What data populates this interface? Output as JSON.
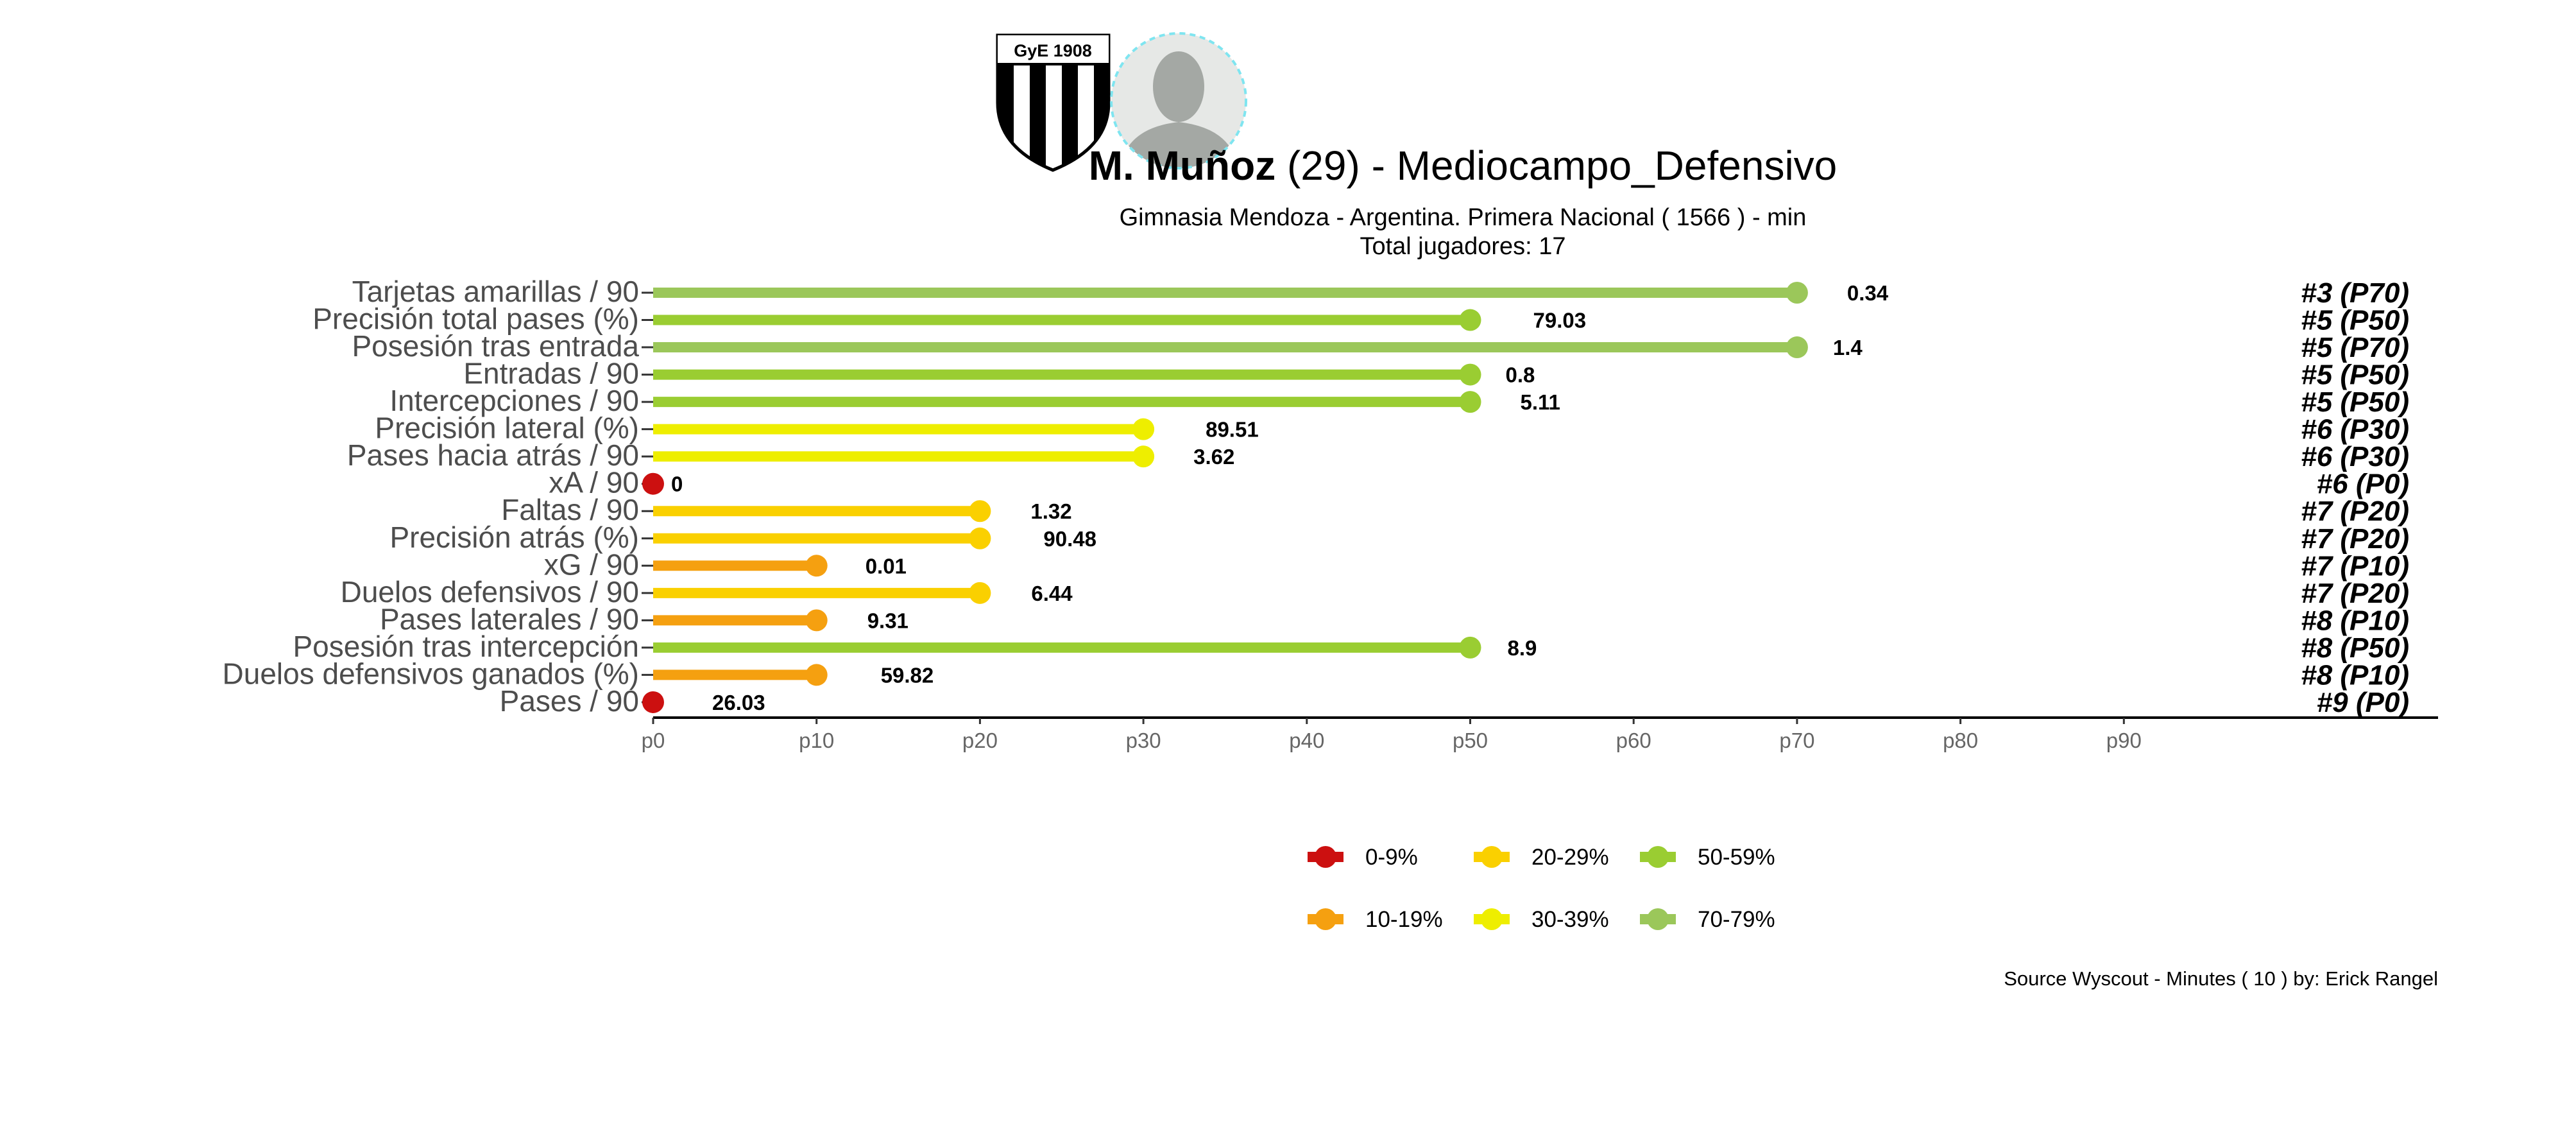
{
  "header": {
    "club_crest_text": "GyE 1908",
    "player_name_bold": "M. Muñoz",
    "player_suffix": " (29) -  Mediocampo_Defensivo",
    "subtitle": "Gimnasia Mendoza  -  Argentina. Primera Nacional  ( 1566 ) - min",
    "total_players": "Total jugadores:  17"
  },
  "footer": {
    "source": "Source Wyscout - Minutes ( 10 ) by: Erick Rangel"
  },
  "colors": {
    "c0": "#CC1010",
    "c10": "#F5A010",
    "c20": "#FAD000",
    "c30": "#EEEE00",
    "c50": "#9ACD32",
    "c70": "#9BC75A",
    "axis": "#000000",
    "label": "#4D4D4D",
    "tick": "#666666"
  },
  "chart_data": {
    "type": "bar",
    "orientation": "horizontal-lollipop",
    "xlim": [
      0,
      100
    ],
    "x_ticks": [
      "p0",
      "p10",
      "p20",
      "p30",
      "p40",
      "p50",
      "p60",
      "p70",
      "p80",
      "p90"
    ],
    "x_tick_values": [
      0,
      10,
      20,
      30,
      40,
      50,
      60,
      70,
      80,
      90
    ],
    "grid": false,
    "legend_position": "bottom",
    "legend": [
      {
        "label": "0-9%",
        "color_key": "c0"
      },
      {
        "label": "20-29%",
        "color_key": "c20"
      },
      {
        "label": "50-59%",
        "color_key": "c50"
      },
      {
        "label": "10-19%",
        "color_key": "c10"
      },
      {
        "label": "30-39%",
        "color_key": "c30"
      },
      {
        "label": "70-79%",
        "color_key": "c70"
      }
    ],
    "rows": [
      {
        "metric": "Tarjetas amarillas / 90",
        "percentile": 70,
        "value_label": "0.34",
        "rank_label": "#3 (P70)",
        "color_key": "c70"
      },
      {
        "metric": "Precisión total pases (%)",
        "percentile": 50,
        "value_label": "79.03",
        "rank_label": "#5 (P50)",
        "color_key": "c50"
      },
      {
        "metric": "Posesión tras entrada",
        "percentile": 70,
        "value_label": "1.4",
        "rank_label": "#5 (P70)",
        "color_key": "c70"
      },
      {
        "metric": "Entradas / 90",
        "percentile": 50,
        "value_label": "0.8",
        "rank_label": "#5 (P50)",
        "color_key": "c50"
      },
      {
        "metric": "Intercepciones / 90",
        "percentile": 50,
        "value_label": "5.11",
        "rank_label": "#5 (P50)",
        "color_key": "c50"
      },
      {
        "metric": "Precisión lateral (%)",
        "percentile": 30,
        "value_label": "89.51",
        "rank_label": "#6 (P30)",
        "color_key": "c30"
      },
      {
        "metric": "Pases hacia atrás / 90",
        "percentile": 30,
        "value_label": "3.62",
        "rank_label": "#6 (P30)",
        "color_key": "c30"
      },
      {
        "metric": "xA / 90",
        "percentile": 0,
        "value_label": "0",
        "rank_label": "#6 (P0)",
        "color_key": "c0"
      },
      {
        "metric": "Faltas / 90",
        "percentile": 20,
        "value_label": "1.32",
        "rank_label": "#7 (P20)",
        "color_key": "c20"
      },
      {
        "metric": "Precisión atrás (%)",
        "percentile": 20,
        "value_label": "90.48",
        "rank_label": "#7 (P20)",
        "color_key": "c20"
      },
      {
        "metric": "xG / 90",
        "percentile": 10,
        "value_label": "0.01",
        "rank_label": "#7 (P10)",
        "color_key": "c10"
      },
      {
        "metric": "Duelos defensivos / 90",
        "percentile": 20,
        "value_label": "6.44",
        "rank_label": "#7 (P20)",
        "color_key": "c20"
      },
      {
        "metric": "Pases laterales / 90",
        "percentile": 10,
        "value_label": "9.31",
        "rank_label": "#8 (P10)",
        "color_key": "c10"
      },
      {
        "metric": "Posesión tras intercepción",
        "percentile": 50,
        "value_label": "8.9",
        "rank_label": "#8 (P50)",
        "color_key": "c50"
      },
      {
        "metric": "Duelos defensivos ganados (%)",
        "percentile": 10,
        "value_label": "59.82",
        "rank_label": "#8 (P10)",
        "color_key": "c10"
      },
      {
        "metric": "Pases / 90",
        "percentile": 0,
        "value_label": "26.03",
        "rank_label": "#9 (P0)",
        "color_key": "c0"
      }
    ]
  }
}
